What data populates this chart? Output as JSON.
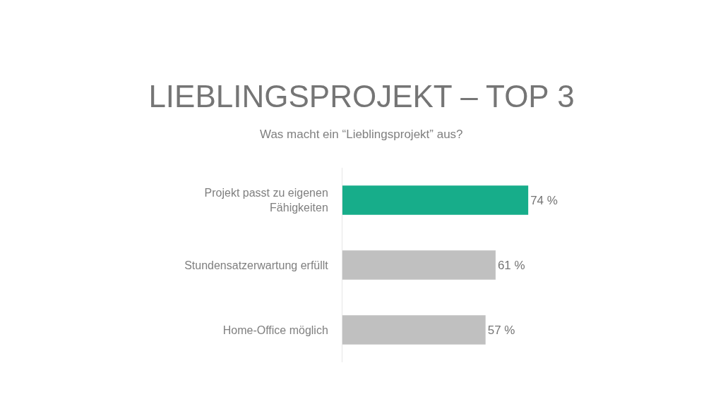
{
  "chart_data": {
    "type": "bar",
    "orientation": "horizontal",
    "title": "LIEBLINGSPROJEKT – TOP 3",
    "subtitle": "Was macht ein “Lieblingsprojekt” aus?",
    "categories": [
      "Projekt passt zu eigenen Fähigkeiten",
      "Stundensatzerwartung erfüllt",
      "Home-Office möglich"
    ],
    "values": [
      74,
      61,
      57
    ],
    "colors": [
      "#17ad8a",
      "#c0c0c0",
      "#c0c0c0"
    ],
    "value_labels": [
      "74 %",
      "61 %",
      "57 %"
    ],
    "tick_labels": "y"
  }
}
